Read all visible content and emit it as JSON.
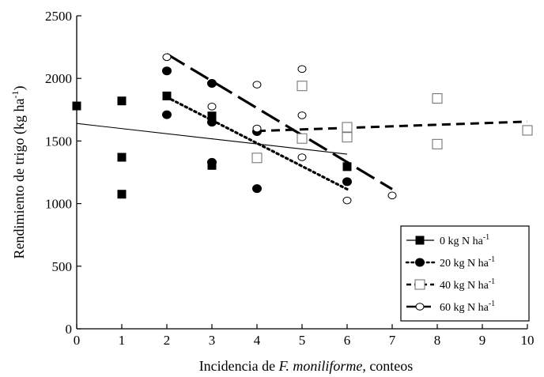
{
  "chart_data": {
    "type": "scatter",
    "title": "",
    "xlabel_parts": [
      {
        "text": "Incidencia de ",
        "italic": false
      },
      {
        "text": "F. moniliforme",
        "italic": true
      },
      {
        "text": ", conteos",
        "italic": false
      }
    ],
    "ylabel_parts": [
      {
        "text": "Rendimiento de trigo (kg ha",
        "sup": false
      },
      {
        "text": "-1",
        "sup": true
      },
      {
        "text": ")",
        "sup": false
      }
    ],
    "xlim": [
      0,
      10
    ],
    "ylim": [
      0,
      2500
    ],
    "x_ticks": [
      0,
      1,
      2,
      3,
      4,
      5,
      6,
      7,
      8,
      9,
      10
    ],
    "y_ticks": [
      0,
      500,
      1000,
      1500,
      2000,
      2500
    ],
    "grid": false,
    "legend_position": "bottom-right",
    "series": [
      {
        "name": "0 kg N ha",
        "name_sup": "-1",
        "marker": "square-filled",
        "line_style": "solid-thin",
        "color": "#000000",
        "points": [
          [
            0,
            1780
          ],
          [
            1,
            1820
          ],
          [
            1,
            1370
          ],
          [
            1,
            1075
          ],
          [
            2,
            1860
          ],
          [
            3,
            1700
          ],
          [
            3,
            1305
          ],
          [
            6,
            1295
          ]
        ],
        "trend": [
          [
            0,
            1640
          ],
          [
            6,
            1395
          ]
        ]
      },
      {
        "name": "20 kg N ha",
        "name_sup": "-1",
        "marker": "circle-filled",
        "line_style": "dotted",
        "color": "#000000",
        "points": [
          [
            2,
            2060
          ],
          [
            2,
            1710
          ],
          [
            3,
            1960
          ],
          [
            3,
            1650
          ],
          [
            3,
            1330
          ],
          [
            4,
            1575
          ],
          [
            4,
            1120
          ],
          [
            6,
            1175
          ]
        ],
        "trend": [
          [
            2,
            1850
          ],
          [
            6,
            1115
          ]
        ]
      },
      {
        "name": "40 kg N ha",
        "name_sup": "-1",
        "marker": "square-open",
        "line_style": "short-dash",
        "color": "#000000",
        "points": [
          [
            4,
            1365
          ],
          [
            5,
            1940
          ],
          [
            5,
            1520
          ],
          [
            6,
            1610
          ],
          [
            6,
            1530
          ],
          [
            8,
            1840
          ],
          [
            8,
            1475
          ],
          [
            10,
            1585
          ]
        ],
        "trend": [
          [
            4,
            1580
          ],
          [
            10,
            1655
          ]
        ]
      },
      {
        "name": "60 kg N ha",
        "name_sup": "-1",
        "marker": "circle-open",
        "line_style": "long-dash",
        "color": "#000000",
        "points": [
          [
            2,
            2170
          ],
          [
            3,
            1775
          ],
          [
            4,
            1950
          ],
          [
            4,
            1600
          ],
          [
            5,
            2075
          ],
          [
            5,
            1705
          ],
          [
            5,
            1370
          ],
          [
            6,
            1025
          ],
          [
            7,
            1065
          ]
        ],
        "trend": [
          [
            2,
            2195
          ],
          [
            7,
            1115
          ]
        ]
      }
    ]
  }
}
